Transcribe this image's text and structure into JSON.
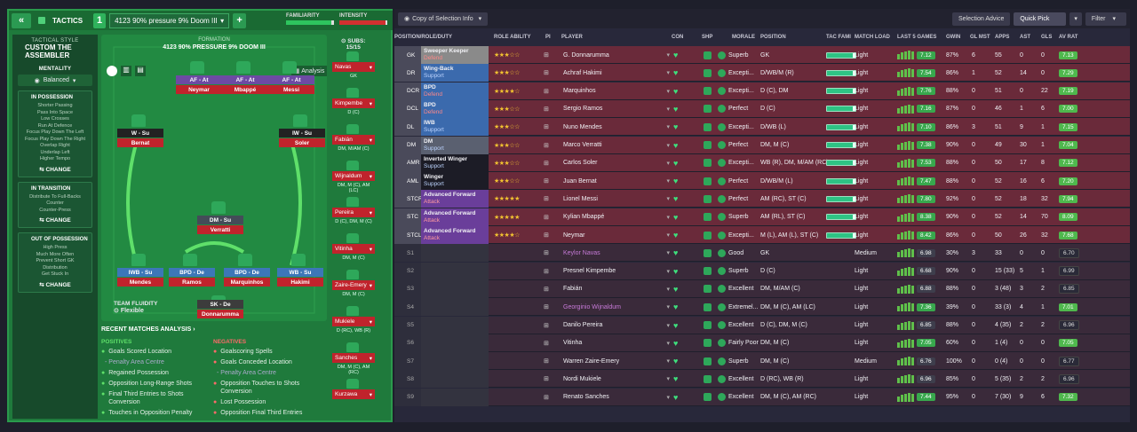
{
  "topbar": {
    "back": "«",
    "tactics": "TACTICS",
    "slot": "1",
    "tactic_name": "4123 90% pressure 9% Doom III",
    "plus": "+",
    "familiarity": "FAMILIARITY",
    "intensity": "INTENSITY",
    "familiarity_level": 0.95,
    "intensity_level": 0.97
  },
  "style": {
    "header": "TACTICAL STYLE",
    "name": "CUSTOM THE ASSEMBLER",
    "mentality_label": "MENTALITY",
    "mentality": "Balanced",
    "in_possession": {
      "title": "IN POSSESSION",
      "items": [
        "Shorter Passing",
        "Pass Into Space",
        "Low Crosses",
        "Run At Defence",
        "Focus Play Down The Left",
        "Focus Play Down The Right",
        "Overlap Right",
        "Underlap Left",
        "Higher Tempo"
      ],
      "change": "CHANGE"
    },
    "in_transition": {
      "title": "IN TRANSITION",
      "items": [
        "Distribute To Full-Backs",
        "Counter",
        "Counter-Press"
      ],
      "change": "CHANGE"
    },
    "out_of_possession": {
      "title": "OUT OF POSSESSION",
      "items": [
        "High Press",
        "Much More Often",
        "Prevent Short GK",
        "Distribution",
        "Get Stuck In"
      ],
      "change": "CHANGE"
    }
  },
  "pitch": {
    "formation_label": "FORMATION",
    "formation": "4123 90% PRESSURE 9% DOOM III",
    "analysis": "Analysis",
    "fluidity_label": "TEAM FLUIDITY",
    "fluidity": "Flexible",
    "subs_label": "SUBS:",
    "subs": "15/15"
  },
  "players_on_pitch": [
    {
      "role": "AF - At",
      "name": "Neymar"
    },
    {
      "role": "AF - At",
      "name": "Mbappé"
    },
    {
      "role": "AF - At",
      "name": "Messi"
    },
    {
      "role": "W - Su",
      "name": "Bernat"
    },
    {
      "role": "IW - Su",
      "name": "Soler"
    },
    {
      "role": "DM - Su",
      "name": "Verratti"
    },
    {
      "role": "IWB - Su",
      "name": "Mendes"
    },
    {
      "role": "BPD - De",
      "name": "Ramos"
    },
    {
      "role": "BPD - De",
      "name": "Marquinhos"
    },
    {
      "role": "WB - Su",
      "name": "Hakimi"
    },
    {
      "role": "SK - De",
      "name": "Donnarumma"
    }
  ],
  "subs": [
    {
      "name": "Navas",
      "pos": "GK"
    },
    {
      "name": "Kimpembe",
      "pos": "D (C)"
    },
    {
      "name": "Fabián",
      "pos": "DM, M/AM (C)"
    },
    {
      "name": "Wijnaldum",
      "pos": "DM, M (C), AM (LC)"
    },
    {
      "name": "Pereira",
      "pos": "D (C), DM, M (C)"
    },
    {
      "name": "Vitinha",
      "pos": "DM, M (C)"
    },
    {
      "name": "Zaire-Emery",
      "pos": "DM, M (C)"
    },
    {
      "name": "Mukiele",
      "pos": "D (RC), WB (R)"
    },
    {
      "name": "Sanches",
      "pos": "DM, M (C), AM (RC)"
    },
    {
      "name": "Kurzawa",
      "pos": ""
    }
  ],
  "analysis": {
    "title": "RECENT MATCHES ANALYSIS ›",
    "positives_label": "POSITIVES",
    "negatives_label": "NEGATIVES",
    "positives": [
      "Goals Scored Location",
      "- Penalty Area Centre",
      "Regained Possession",
      "Opposition Long-Range Shots",
      "Final Third Entries to Shots Conversion",
      "Touches in Opposition Penalty"
    ],
    "negatives": [
      "Goalscoring Spells",
      "Goals Conceded Location",
      "- Penalty Area Centre",
      "Opposition Touches to Shots Conversion",
      "Lost Possession",
      "Opposition Final Third Entries"
    ]
  },
  "right": {
    "copy_btn": "Copy of Selection Info",
    "selection_advice": "Selection Advice",
    "quick_pick": "Quick Pick",
    "filter": "Filter"
  },
  "headers": [
    "POSITION/ROLE/DUTY",
    "ROLE ABILITY",
    "PI",
    "PLAYER",
    "CON",
    "SHP",
    "MORALE",
    "POSITION",
    "TAC FAMI",
    "MATCH LOAD",
    "LAST 5 GAMES",
    "GWIN",
    "GL MST",
    "APPS",
    "AST",
    "GLS",
    "AV RAT"
  ],
  "rows": [
    {
      "pos": "GK",
      "role": "Sweeper Keeper",
      "duty": "Defend",
      "stars": 3,
      "player": "G. Donnarumma",
      "morale": "Superb",
      "position": "GK",
      "load": "Light",
      "rat": "7.12",
      "gwin": "87%",
      "glmst": "6",
      "apps": "55",
      "ast": "0",
      "gls": "0",
      "av": "7.13"
    },
    {
      "pos": "DR",
      "role": "Wing-Back",
      "duty": "Support",
      "stars": 3,
      "player": "Achraf Hakimi",
      "morale": "Excepti...",
      "position": "D/WB/M (R)",
      "load": "Light",
      "rat": "7.54",
      "gwin": "86%",
      "glmst": "1",
      "apps": "52",
      "ast": "14",
      "gls": "0",
      "av": "7.29"
    },
    {
      "pos": "DCR",
      "role": "BPD",
      "duty": "Defend",
      "stars": 4,
      "player": "Marquinhos",
      "morale": "Excepti...",
      "position": "D (C), DM",
      "load": "Light",
      "rat": "7.76",
      "gwin": "88%",
      "glmst": "0",
      "apps": "51",
      "ast": "0",
      "gls": "22",
      "av": "7.19"
    },
    {
      "pos": "DCL",
      "role": "BPD",
      "duty": "Defend",
      "stars": 3,
      "player": "Sergio Ramos",
      "morale": "Perfect",
      "position": "D (C)",
      "load": "Light",
      "rat": "7.16",
      "gwin": "87%",
      "glmst": "0",
      "apps": "46",
      "ast": "1",
      "gls": "6",
      "av": "7.00"
    },
    {
      "pos": "DL",
      "role": "IWB",
      "duty": "Support",
      "stars": 3,
      "player": "Nuno Mendes",
      "morale": "Excepti...",
      "position": "D/WB (L)",
      "load": "Light",
      "rat": "7.10",
      "gwin": "86%",
      "glmst": "3",
      "apps": "51",
      "ast": "9",
      "gls": "1",
      "av": "7.15"
    },
    {
      "pos": "DM",
      "role": "DM",
      "duty": "Support",
      "stars": 3,
      "player": "Marco Verratti",
      "morale": "Perfect",
      "position": "DM, M (C)",
      "load": "Light",
      "rat": "7.38",
      "gwin": "90%",
      "glmst": "0",
      "apps": "49",
      "ast": "30",
      "gls": "1",
      "av": "7.04"
    },
    {
      "pos": "AMR",
      "role": "Inverted Winger",
      "duty": "Support",
      "stars": 3,
      "player": "Carlos Soler",
      "morale": "Excepti...",
      "position": "WB (R), DM, M/AM (RC)",
      "load": "Light",
      "rat": "7.53",
      "gwin": "88%",
      "glmst": "0",
      "apps": "50",
      "ast": "17",
      "gls": "8",
      "av": "7.12"
    },
    {
      "pos": "AML",
      "role": "Winger",
      "duty": "Support",
      "stars": 3,
      "player": "Juan Bernat",
      "morale": "Perfect",
      "position": "D/WB/M (L)",
      "load": "Light",
      "rat": "7.47",
      "gwin": "88%",
      "glmst": "0",
      "apps": "52",
      "ast": "16",
      "gls": "6",
      "av": "7.20"
    },
    {
      "pos": "STCR",
      "role": "Advanced Forward",
      "duty": "Attack",
      "stars": 5,
      "player": "Lionel Messi",
      "morale": "Perfect",
      "position": "AM (RC), ST (C)",
      "load": "Light",
      "rat": "7.80",
      "gwin": "92%",
      "glmst": "0",
      "apps": "52",
      "ast": "18",
      "gls": "32",
      "av": "7.94"
    },
    {
      "pos": "STC",
      "role": "Advanced Forward",
      "duty": "Attack",
      "stars": 5,
      "player": "Kylian Mbappé",
      "morale": "Superb",
      "position": "AM (RL), ST (C)",
      "load": "Light",
      "rat": "8.38",
      "gwin": "90%",
      "glmst": "0",
      "apps": "52",
      "ast": "14",
      "gls": "70",
      "av": "8.09"
    },
    {
      "pos": "STCL",
      "role": "Advanced Forward",
      "duty": "Attack",
      "stars": 4,
      "player": "Neymar",
      "morale": "Excepti...",
      "position": "M (L), AM (L), ST (C)",
      "load": "Light",
      "rat": "8.42",
      "gwin": "86%",
      "glmst": "0",
      "apps": "50",
      "ast": "26",
      "gls": "32",
      "av": "7.68"
    },
    {
      "pos": "S1",
      "role": "",
      "duty": "",
      "stars": 0,
      "player": "Keylor Navas",
      "morale": "Good",
      "position": "GK",
      "load": "Medium",
      "rat": "6.98",
      "gwin": "30%",
      "glmst": "3",
      "apps": "33",
      "ast": "0",
      "gls": "0",
      "av": "6.70"
    },
    {
      "pos": "S2",
      "role": "",
      "duty": "",
      "stars": 0,
      "player": "Presnel Kimpembe",
      "morale": "Superb",
      "position": "D (C)",
      "load": "Light",
      "rat": "6.68",
      "gwin": "90%",
      "glmst": "0",
      "apps": "15 (33)",
      "ast": "5",
      "gls": "1",
      "av": "6.99"
    },
    {
      "pos": "S3",
      "role": "",
      "duty": "",
      "stars": 0,
      "player": "Fabián",
      "morale": "Excellent",
      "position": "DM, M/AM (C)",
      "load": "Light",
      "rat": "6.88",
      "gwin": "88%",
      "glmst": "0",
      "apps": "3 (48)",
      "ast": "3",
      "gls": "2",
      "av": "6.85"
    },
    {
      "pos": "S4",
      "role": "",
      "duty": "",
      "stars": 0,
      "player": "Georginio Wijnaldum",
      "morale": "Extremel...",
      "position": "DM, M (C), AM (LC)",
      "load": "Light",
      "rat": "7.36",
      "gwin": "39%",
      "glmst": "0",
      "apps": "33 (3)",
      "ast": "4",
      "gls": "1",
      "av": "7.01"
    },
    {
      "pos": "S5",
      "role": "",
      "duty": "",
      "stars": 0,
      "player": "Danilo Pereira",
      "morale": "Excellent",
      "position": "D (C), DM, M (C)",
      "load": "Light",
      "rat": "6.85",
      "gwin": "88%",
      "glmst": "0",
      "apps": "4 (35)",
      "ast": "2",
      "gls": "2",
      "av": "6.96"
    },
    {
      "pos": "S6",
      "role": "",
      "duty": "",
      "stars": 0,
      "player": "Vitinha",
      "morale": "Fairly Poor",
      "position": "DM, M (C)",
      "load": "Light",
      "rat": "7.05",
      "gwin": "60%",
      "glmst": "0",
      "apps": "1 (4)",
      "ast": "0",
      "gls": "0",
      "av": "7.05"
    },
    {
      "pos": "S7",
      "role": "",
      "duty": "",
      "stars": 0,
      "player": "Warren Zaire-Emery",
      "morale": "Superb",
      "position": "DM, M (C)",
      "load": "Medium",
      "rat": "6.76",
      "gwin": "100%",
      "glmst": "0",
      "apps": "0 (4)",
      "ast": "0",
      "gls": "0",
      "av": "6.77"
    },
    {
      "pos": "S8",
      "role": "",
      "duty": "",
      "stars": 0,
      "player": "Nordi Mukiele",
      "morale": "Excellent",
      "position": "D (RC), WB (R)",
      "load": "Light",
      "rat": "6.96",
      "gwin": "85%",
      "glmst": "0",
      "apps": "5 (35)",
      "ast": "2",
      "gls": "2",
      "av": "6.96"
    },
    {
      "pos": "S9",
      "role": "",
      "duty": "",
      "stars": 0,
      "player": "Renato Sanches",
      "morale": "Excellent",
      "position": "DM, M (C), AM (RC)",
      "load": "Light",
      "rat": "7.44",
      "gwin": "95%",
      "glmst": "0",
      "apps": "7 (30)",
      "ast": "9",
      "gls": "6",
      "av": "7.32"
    }
  ]
}
